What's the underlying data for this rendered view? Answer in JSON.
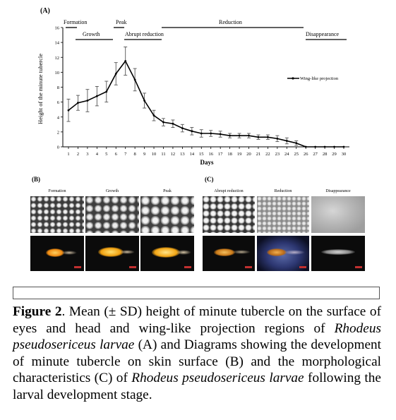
{
  "panel_a": {
    "label": "(A)",
    "stages": [
      {
        "label": "Formation"
      },
      {
        "label": "Growth"
      },
      {
        "label": "Peak"
      },
      {
        "label": "Abrupt reduction"
      },
      {
        "label": "Reduction"
      },
      {
        "label": "Disappearance"
      }
    ]
  },
  "chart_data": {
    "type": "line",
    "ylabel": "Height of the minute tubercle",
    "xlabel": "Days",
    "ylim": [
      0,
      16
    ],
    "yticks": [
      0,
      2,
      4,
      6,
      8,
      10,
      12,
      14,
      16
    ],
    "xlim": [
      1,
      30
    ],
    "x": [
      1,
      2,
      3,
      4,
      5,
      6,
      7,
      8,
      9,
      10,
      11,
      12,
      13,
      14,
      15,
      16,
      17,
      18,
      19,
      20,
      21,
      22,
      23,
      24,
      25,
      26,
      27,
      28,
      29,
      30
    ],
    "series": [
      {
        "name": "Wing-like projection",
        "values": [
          4.9,
          5.9,
          6.2,
          6.8,
          7.4,
          9.8,
          11.5,
          9.0,
          6.2,
          4.2,
          3.3,
          3.1,
          2.5,
          2.1,
          1.8,
          1.8,
          1.7,
          1.5,
          1.5,
          1.5,
          1.3,
          1.3,
          1.1,
          0.8,
          0.5,
          0.0,
          0.0,
          0.0,
          0.0,
          0.0
        ],
        "errors": [
          1.5,
          1.0,
          1.5,
          1.3,
          1.4,
          1.5,
          1.9,
          1.5,
          1.0,
          0.7,
          0.5,
          0.5,
          0.5,
          0.5,
          0.5,
          0.4,
          0.4,
          0.3,
          0.3,
          0.3,
          0.3,
          0.3,
          0.4,
          0.4,
          0.3,
          0.0,
          0.0,
          0.0,
          0.0,
          0.0
        ]
      }
    ],
    "grid": false,
    "legend": "right"
  },
  "panel_b": {
    "label": "(B)",
    "columns": [
      "Formation",
      "Growth",
      "Peak"
    ]
  },
  "panel_c": {
    "label": "(C)",
    "columns": [
      "Abrupt reduction",
      "Reduction",
      "Disappearance"
    ]
  },
  "caption": {
    "figure_label": "Figure 2",
    "text_1": ". Mean (± SD) height of minute tubercle on the surface of eyes and head and wing-like projection regions of ",
    "species_1": "Rhodeus pseudosericeus larvae",
    "text_2": " (A) and Diagrams showing the development of minute tubercle on skin surface (B) and the morphological characteristics (C) of ",
    "species_2": "Rhodeus pseudosericeus larvae",
    "text_3": " following the larval development stage."
  }
}
